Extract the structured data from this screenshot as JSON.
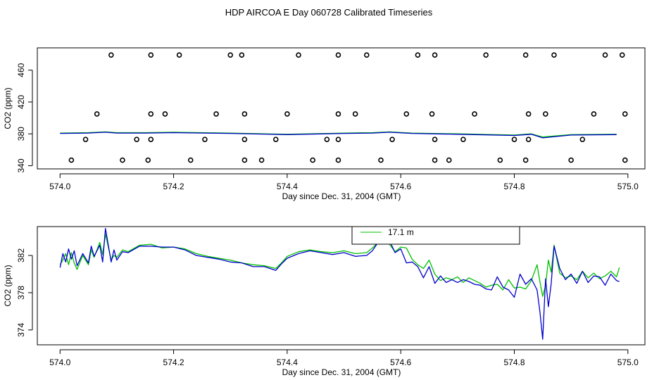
{
  "title": "HDP AIRCOA E  Day 060728  Calibrated Timeseries",
  "colors": {
    "green": "#00c000",
    "blue": "#0000cc"
  },
  "chart_data": [
    {
      "type": "scatter",
      "xlabel": "Day since Dec. 31, 2004 (GMT)",
      "ylabel": "CO2 (ppm)",
      "xlim": [
        573.96,
        575.03
      ],
      "ylim": [
        336,
        488
      ],
      "xticks": [
        574.0,
        574.2,
        574.4,
        574.6,
        574.8,
        575.0
      ],
      "xtick_labels": [
        "574.0",
        "574.2",
        "574.4",
        "574.6",
        "574.8",
        "575.0"
      ],
      "yticks": [
        340,
        380,
        420,
        460
      ],
      "ytick_labels": [
        "340",
        "380",
        "420",
        "460"
      ],
      "grid": false,
      "points": [
        [
          574.09,
          479
        ],
        [
          574.16,
          479
        ],
        [
          574.21,
          479
        ],
        [
          574.3,
          479
        ],
        [
          574.32,
          479
        ],
        [
          574.42,
          479
        ],
        [
          574.49,
          479
        ],
        [
          574.54,
          479
        ],
        [
          574.63,
          479
        ],
        [
          574.66,
          479
        ],
        [
          574.75,
          479
        ],
        [
          574.82,
          479
        ],
        [
          574.87,
          479
        ],
        [
          574.96,
          479
        ],
        [
          574.99,
          479
        ],
        [
          574.065,
          405
        ],
        [
          574.16,
          405
        ],
        [
          574.185,
          405
        ],
        [
          574.275,
          405
        ],
        [
          574.325,
          405
        ],
        [
          574.4,
          405
        ],
        [
          574.49,
          405
        ],
        [
          574.52,
          405
        ],
        [
          574.61,
          405
        ],
        [
          574.655,
          405
        ],
        [
          574.73,
          405
        ],
        [
          574.825,
          405
        ],
        [
          574.855,
          405
        ],
        [
          574.94,
          405
        ],
        [
          574.995,
          405
        ],
        [
          574.045,
          373
        ],
        [
          574.135,
          373
        ],
        [
          574.16,
          373
        ],
        [
          574.255,
          373
        ],
        [
          574.325,
          373
        ],
        [
          574.38,
          373
        ],
        [
          574.47,
          373
        ],
        [
          574.49,
          373
        ],
        [
          574.585,
          373
        ],
        [
          574.66,
          373
        ],
        [
          574.71,
          373
        ],
        [
          574.8,
          373
        ],
        [
          574.825,
          373
        ],
        [
          574.92,
          373
        ],
        [
          574.02,
          347
        ],
        [
          574.11,
          347
        ],
        [
          574.155,
          347
        ],
        [
          574.23,
          347
        ],
        [
          574.325,
          347
        ],
        [
          574.355,
          347
        ],
        [
          574.445,
          347
        ],
        [
          574.49,
          347
        ],
        [
          574.565,
          347
        ],
        [
          574.66,
          347
        ],
        [
          574.685,
          347
        ],
        [
          574.775,
          347
        ],
        [
          574.82,
          347
        ],
        [
          574.9,
          347
        ],
        [
          574.995,
          347
        ]
      ],
      "series": [
        {
          "color": "#00c000",
          "x": [
            574.0,
            574.05,
            574.08,
            574.1,
            574.15,
            574.2,
            574.3,
            574.4,
            574.5,
            574.55,
            574.58,
            574.62,
            574.7,
            574.8,
            574.83,
            574.85,
            574.9,
            574.98
          ],
          "y": [
            381,
            381.5,
            382.5,
            381.5,
            381.5,
            382,
            381,
            379.5,
            381,
            381.5,
            382.5,
            381,
            380,
            378.5,
            380,
            376,
            379,
            379.5
          ]
        },
        {
          "color": "#0000cc",
          "x": [
            574.0,
            574.05,
            574.08,
            574.1,
            574.15,
            574.2,
            574.3,
            574.4,
            574.5,
            574.55,
            574.58,
            574.62,
            574.7,
            574.8,
            574.83,
            574.85,
            574.9,
            574.98
          ],
          "y": [
            380.5,
            381,
            382,
            381,
            381,
            381.5,
            380.5,
            379,
            380.5,
            381,
            382,
            380.5,
            379.5,
            378,
            379.5,
            375,
            378.5,
            379
          ]
        }
      ]
    },
    {
      "type": "line",
      "xlabel": "Day since Dec. 31, 2004 (GMT)",
      "ylabel": "CO2 (ppm)",
      "xlim": [
        573.96,
        575.03
      ],
      "ylim": [
        372.4,
        385.1
      ],
      "xticks": [
        574.0,
        574.2,
        574.4,
        574.6,
        574.8,
        575.0
      ],
      "xtick_labels": [
        "574.0",
        "574.2",
        "574.4",
        "574.6",
        "574.8",
        "575.0"
      ],
      "yticks": [
        374,
        378,
        382
      ],
      "ytick_labels": [
        "374",
        "378",
        "382"
      ],
      "grid": false,
      "legend": {
        "placement": "top-center",
        "entries": [
          {
            "name": "17.1 m",
            "color": "#00c000"
          }
        ]
      },
      "series": [
        {
          "name": "17.1 m",
          "color": "#00c000",
          "x": [
            574.0,
            574.005,
            574.01,
            574.015,
            574.02,
            574.025,
            574.03,
            574.04,
            574.05,
            574.055,
            574.06,
            574.07,
            574.075,
            574.08,
            574.09,
            574.095,
            574.1,
            574.11,
            574.12,
            574.14,
            574.16,
            574.18,
            574.2,
            574.22,
            574.24,
            574.26,
            574.28,
            574.3,
            574.32,
            574.34,
            574.36,
            574.38,
            574.39,
            574.4,
            574.42,
            574.44,
            574.46,
            574.48,
            574.5,
            574.52,
            574.54,
            574.55,
            574.56,
            574.57,
            574.58,
            574.59,
            574.6,
            574.61,
            574.62,
            574.63,
            574.64,
            574.65,
            574.66,
            574.67,
            574.68,
            574.69,
            574.7,
            574.71,
            574.72,
            574.73,
            574.74,
            574.75,
            574.76,
            574.77,
            574.78,
            574.79,
            574.8,
            574.81,
            574.82,
            574.83,
            574.84,
            574.845,
            574.85,
            574.855,
            574.86,
            574.865,
            574.87,
            574.88,
            574.89,
            574.9,
            574.91,
            574.92,
            574.93,
            574.94,
            574.95,
            574.96,
            574.97,
            574.98,
            574.985
          ],
          "y": [
            381.0,
            381.5,
            382.2,
            381.0,
            382.3,
            381.2,
            380.5,
            382.0,
            381.0,
            382.6,
            381.8,
            383.4,
            382.1,
            384.3,
            381.5,
            382.0,
            381.8,
            382.6,
            382.4,
            383.1,
            383.2,
            382.8,
            382.9,
            382.7,
            382.2,
            381.9,
            381.7,
            381.5,
            381.2,
            381.0,
            380.9,
            380.6,
            381.2,
            381.9,
            382.4,
            382.6,
            382.4,
            382.3,
            382.5,
            382.2,
            382.3,
            382.8,
            383.4,
            383.9,
            383.2,
            382.4,
            382.9,
            382.8,
            381.6,
            381.0,
            380.6,
            381.5,
            380.0,
            379.3,
            379.6,
            379.4,
            379.7,
            379.1,
            379.6,
            379.3,
            379.0,
            378.6,
            378.8,
            378.9,
            378.3,
            379.4,
            378.5,
            378.6,
            378.4,
            379.3,
            381.0,
            379.2,
            377.6,
            378.8,
            381.5,
            380.2,
            383.1,
            380.1,
            379.6,
            379.8,
            379.4,
            380.3,
            379.6,
            380.1,
            379.5,
            379.8,
            380.3,
            379.7,
            380.7
          ]
        },
        {
          "color": "#0000cc",
          "x": [
            574.0,
            574.005,
            574.01,
            574.015,
            574.02,
            574.025,
            574.03,
            574.04,
            574.05,
            574.055,
            574.06,
            574.07,
            574.075,
            574.08,
            574.09,
            574.095,
            574.1,
            574.11,
            574.12,
            574.14,
            574.16,
            574.18,
            574.2,
            574.22,
            574.24,
            574.26,
            574.28,
            574.3,
            574.32,
            574.34,
            574.36,
            574.38,
            574.39,
            574.4,
            574.42,
            574.44,
            574.46,
            574.48,
            574.5,
            574.52,
            574.54,
            574.55,
            574.56,
            574.57,
            574.58,
            574.59,
            574.6,
            574.61,
            574.62,
            574.63,
            574.64,
            574.65,
            574.66,
            574.67,
            574.68,
            574.69,
            574.7,
            574.71,
            574.72,
            574.73,
            574.74,
            574.75,
            574.76,
            574.77,
            574.78,
            574.79,
            574.8,
            574.81,
            574.82,
            574.83,
            574.84,
            574.845,
            574.85,
            574.855,
            574.86,
            574.865,
            574.87,
            574.88,
            574.89,
            574.9,
            574.91,
            574.92,
            574.93,
            574.94,
            574.95,
            574.96,
            574.97,
            574.98,
            574.985
          ],
          "y": [
            380.7,
            382.2,
            381.3,
            382.7,
            381.6,
            382.5,
            380.9,
            382.2,
            381.2,
            383.0,
            381.9,
            383.1,
            381.3,
            384.9,
            381.3,
            382.6,
            381.5,
            382.4,
            382.3,
            383.0,
            383.0,
            382.9,
            382.9,
            382.6,
            382.0,
            381.8,
            381.6,
            381.3,
            381.2,
            380.8,
            380.8,
            380.4,
            381.1,
            381.7,
            382.2,
            382.5,
            382.3,
            382.1,
            382.3,
            381.9,
            382.0,
            382.5,
            383.4,
            384.0,
            383.6,
            382.3,
            382.7,
            381.2,
            381.3,
            380.8,
            379.6,
            380.8,
            379.0,
            379.8,
            379.1,
            379.4,
            379.1,
            379.4,
            379.2,
            378.9,
            378.8,
            378.4,
            378.3,
            379.7,
            378.6,
            378.3,
            377.5,
            380.0,
            378.9,
            379.5,
            378.3,
            376.0,
            373.0,
            379.5,
            376.5,
            379.0,
            383.0,
            380.6,
            379.4,
            380.0,
            379.0,
            380.3,
            379.1,
            379.8,
            379.7,
            378.8,
            380.0,
            379.3,
            379.2
          ]
        }
      ]
    }
  ]
}
